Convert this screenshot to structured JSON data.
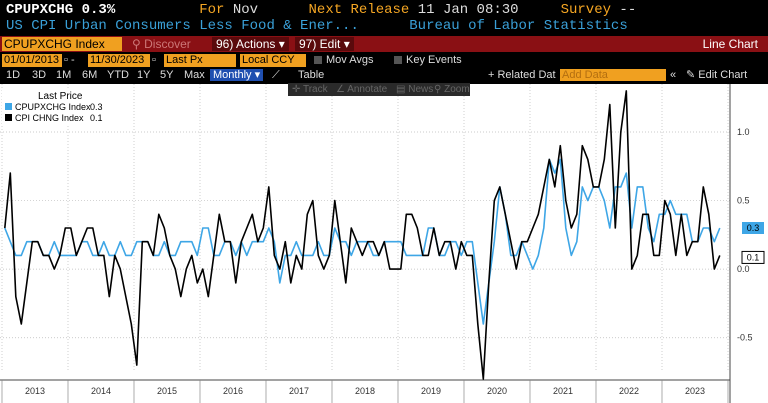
{
  "header": {
    "ticker": "CPUPXCHG",
    "value": "0.3%",
    "for_label": "For",
    "for_value": "Nov",
    "next_release_label": "Next Release",
    "next_release_value": "11 Jan 08:30",
    "survey_label": "Survey",
    "survey_value": "--",
    "description": "US CPI Urban Consumers Less Food & Ener...",
    "source": "Bureau of Labor Statistics"
  },
  "toolbar": {
    "ticker_field": "CPUPXCHG Index",
    "discover": "Discover",
    "actions": "96) Actions",
    "edit": "97) Edit",
    "chart_type": "Line Chart"
  },
  "options": {
    "start_date": "01/01/2013",
    "end_date": "11/30/2023",
    "price": "Last Px",
    "currency": "Local CCY",
    "mov_avgs": "Mov Avgs",
    "key_events": "Key Events"
  },
  "periods": {
    "items": [
      "1D",
      "3D",
      "1M",
      "6M",
      "YTD",
      "1Y",
      "5Y",
      "Max"
    ],
    "frequency": "Monthly",
    "table": "Table",
    "related": "+ Related Dat",
    "add_data": "Add Data",
    "edit_chart": "Edit Chart"
  },
  "tools": {
    "track": "Track",
    "annotate": "Annotate",
    "news": "News",
    "zoom": "Zoom"
  },
  "legend": {
    "title": "Last Price",
    "s1_label": "CPUPXCHG Index",
    "s1_value": "0.3",
    "s2_label": "CPI CHNG Index",
    "s2_value": "0.1"
  },
  "chart_data": {
    "type": "line",
    "x_start": "2013-01",
    "frequency": "monthly",
    "xlabels": [
      "2013",
      "2014",
      "2015",
      "2016",
      "2017",
      "2018",
      "2019",
      "2020",
      "2021",
      "2022",
      "2023"
    ],
    "ylim": [
      -0.75,
      1.35
    ],
    "yticks": [
      -0.5,
      0.0,
      0.5,
      1.0
    ],
    "ytick_labels": [
      "-0.5",
      "0.0",
      "0.5",
      "1.0"
    ],
    "last_labels": [
      "0.3",
      "0.1"
    ],
    "colors": {
      "core": "#3ea6e6",
      "headline": "#000000",
      "grid": "#bbbbbb",
      "background": "#ffffff"
    },
    "series": [
      {
        "name": "CPUPXCHG Index",
        "color": "#3ea6e6",
        "values": [
          0.3,
          0.2,
          0.1,
          0.1,
          0.2,
          0.2,
          0.2,
          0.1,
          0.1,
          0.2,
          0.1,
          0.1,
          0.1,
          0.1,
          0.2,
          0.2,
          0.1,
          0.1,
          0.2,
          0.1,
          0.1,
          0.2,
          0.1,
          0.1,
          0.2,
          0.2,
          0.2,
          0.1,
          0.1,
          0.2,
          0.1,
          0.1,
          0.2,
          0.2,
          0.2,
          0.1,
          0.3,
          0.3,
          0.1,
          0.1,
          0.2,
          0.2,
          0.1,
          0.2,
          0.1,
          0.2,
          0.2,
          0.2,
          0.3,
          0.2,
          -0.1,
          0.1,
          0.1,
          0.2,
          0.1,
          0.1,
          0.1,
          0.2,
          0.1,
          0.1,
          0.3,
          0.2,
          0.2,
          0.1,
          0.2,
          0.2,
          0.2,
          0.1,
          0.1,
          0.2,
          0.2,
          0.2,
          0.2,
          0.1,
          0.1,
          0.1,
          0.1,
          0.3,
          0.3,
          0.1,
          0.1,
          0.2,
          0.2,
          0.1,
          0.2,
          0.2,
          -0.1,
          -0.4,
          -0.1,
          0.2,
          0.6,
          0.4,
          0.1,
          0.1,
          0.2,
          0.1,
          0.0,
          0.1,
          0.3,
          0.8,
          0.7,
          0.8,
          0.3,
          0.1,
          0.2,
          0.6,
          0.5,
          0.6,
          0.6,
          0.5,
          0.3,
          0.6,
          0.6,
          0.7,
          0.3,
          0.6,
          0.6,
          0.3,
          0.2,
          0.4,
          0.4,
          0.5,
          0.4,
          0.4,
          0.4,
          0.2,
          0.2,
          0.3,
          0.3,
          0.2,
          0.3
        ]
      },
      {
        "name": "CPI CHNG Index",
        "color": "#000000",
        "values": [
          0.3,
          0.7,
          -0.2,
          -0.4,
          -0.1,
          0.2,
          0.2,
          0.1,
          0.1,
          0.0,
          0.1,
          0.3,
          0.3,
          0.1,
          0.2,
          0.3,
          0.3,
          0.1,
          0.1,
          -0.2,
          0.1,
          0.0,
          -0.2,
          -0.4,
          -0.7,
          0.2,
          0.2,
          0.1,
          0.4,
          0.3,
          0.1,
          0.0,
          -0.2,
          0.0,
          0.1,
          -0.1,
          0.0,
          -0.2,
          0.1,
          0.4,
          0.2,
          0.2,
          -0.1,
          0.2,
          0.3,
          0.4,
          0.2,
          0.3,
          0.6,
          0.1,
          0.0,
          0.2,
          -0.1,
          0.1,
          0.0,
          0.4,
          0.5,
          0.1,
          0.0,
          0.1,
          0.5,
          0.2,
          -0.1,
          0.3,
          0.2,
          0.1,
          0.2,
          0.2,
          0.1,
          0.2,
          0.0,
          0.0,
          0.0,
          0.4,
          0.4,
          0.3,
          0.1,
          0.1,
          0.3,
          0.1,
          0.2,
          0.2,
          0.0,
          0.2,
          0.1,
          0.1,
          -0.4,
          -0.8,
          -0.1,
          0.5,
          0.6,
          0.4,
          0.2,
          0.0,
          0.2,
          0.2,
          0.3,
          0.4,
          0.6,
          0.8,
          0.6,
          0.9,
          0.5,
          0.3,
          0.4,
          0.9,
          0.8,
          0.6,
          0.6,
          0.8,
          1.2,
          0.3,
          1.0,
          1.3,
          0.0,
          0.1,
          0.4,
          0.4,
          0.1,
          0.1,
          0.5,
          0.4,
          0.1,
          0.4,
          0.1,
          0.2,
          0.2,
          0.6,
          0.4,
          0.0,
          0.1
        ]
      }
    ]
  }
}
